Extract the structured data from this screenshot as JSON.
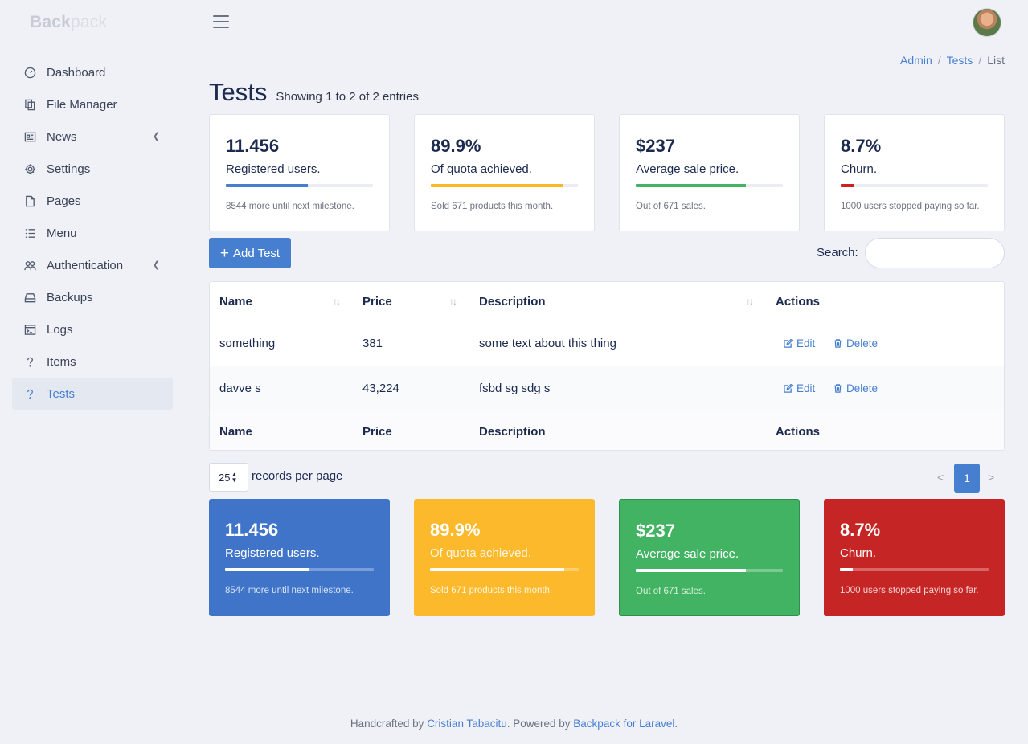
{
  "brand": {
    "part1": "Back",
    "part2": "pack"
  },
  "sidebar": {
    "items": [
      {
        "label": "Dashboard"
      },
      {
        "label": "File Manager"
      },
      {
        "label": "News"
      },
      {
        "label": "Settings"
      },
      {
        "label": "Pages"
      },
      {
        "label": "Menu"
      },
      {
        "label": "Authentication"
      },
      {
        "label": "Backups"
      },
      {
        "label": "Logs"
      },
      {
        "label": "Items"
      },
      {
        "label": "Tests"
      }
    ]
  },
  "breadcrumb": {
    "admin": "Admin",
    "tests": "Tests",
    "list": "List",
    "sep": "/"
  },
  "page": {
    "title": "Tests",
    "subtitle": "Showing 1 to 2 of 2 entries"
  },
  "stats": [
    {
      "value": "11.456",
      "label": "Registered users.",
      "note": "8544 more until next milestone.",
      "progress": 0.56,
      "color": "#467fd0"
    },
    {
      "value": "89.9%",
      "label": "Of quota achieved.",
      "note": "Sold 671 products this month.",
      "progress": 0.9,
      "color": "#fbb826"
    },
    {
      "value": "$237",
      "label": "Average sale price.",
      "note": "Out of 671 sales.",
      "progress": 0.75,
      "color": "#43b465"
    },
    {
      "value": "8.7%",
      "label": "Churn.",
      "note": "1000 users stopped paying so far.",
      "progress": 0.087,
      "color": "#cd2121"
    }
  ],
  "colors": {
    "primary": "#467fd0",
    "warning": "#fcb92b",
    "success": "#42b362",
    "danger": "#c62525"
  },
  "toolbar": {
    "add_label": "Add Test",
    "search_label": "Search:",
    "search_placeholder": ""
  },
  "table": {
    "headers": [
      "Name",
      "Price",
      "Description",
      "Actions"
    ],
    "rows": [
      {
        "name": "something",
        "price": "381",
        "description": "some text about this thing"
      },
      {
        "name": "davve s",
        "price": "43,224",
        "description": "fsbd sg sdg s"
      }
    ],
    "edit_label": "Edit",
    "delete_label": "Delete"
  },
  "pagination": {
    "per_page": "25",
    "per_page_label": "records per page",
    "prev": "<",
    "current": "1",
    "next": ">"
  },
  "footer": {
    "prefix": "Handcrafted by ",
    "author": "Cristian Tabacitu",
    "middle": ". Powered by ",
    "product": "Backpack for Laravel",
    "suffix": "."
  }
}
